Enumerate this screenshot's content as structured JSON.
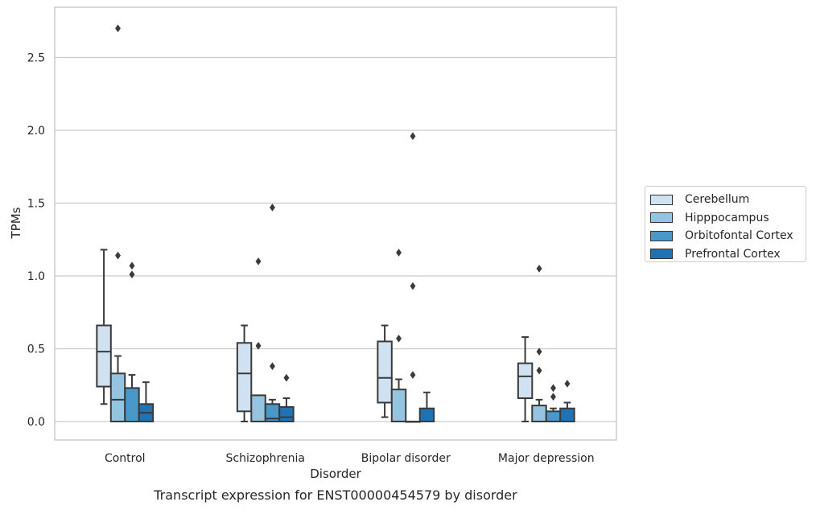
{
  "caption": "Transcript expression for ENST00000454579 by disorder",
  "chart_data": {
    "type": "box",
    "title": "",
    "xlabel": "Disorder",
    "ylabel": "TPMs",
    "ylim": [
      -0.13,
      2.85
    ],
    "yticks": [
      "0.0",
      "0.5",
      "1.0",
      "1.5",
      "2.0",
      "2.5"
    ],
    "grid": "horizontal",
    "legend_position": "right",
    "categories": [
      "Control",
      "Schizophrenia",
      "Bipolar disorder",
      "Major depression"
    ],
    "series": [
      {
        "name": "Cerebellum",
        "color": "#d0e1f2",
        "boxes": [
          {
            "whislo": 0.12,
            "q1": 0.24,
            "med": 0.48,
            "q3": 0.66,
            "whishi": 1.18,
            "fliers": []
          },
          {
            "whislo": 0.0,
            "q1": 0.07,
            "med": 0.33,
            "q3": 0.54,
            "whishi": 0.66,
            "fliers": []
          },
          {
            "whislo": 0.03,
            "q1": 0.13,
            "med": 0.3,
            "q3": 0.55,
            "whishi": 0.66,
            "fliers": []
          },
          {
            "whislo": 0.0,
            "q1": 0.16,
            "med": 0.31,
            "q3": 0.4,
            "whishi": 0.58,
            "fliers": []
          }
        ]
      },
      {
        "name": "Hipppocampus",
        "color": "#94c4df",
        "boxes": [
          {
            "whislo": 0.0,
            "q1": 0.0,
            "med": 0.15,
            "q3": 0.33,
            "whishi": 0.45,
            "fliers": [
              1.14,
              2.7
            ]
          },
          {
            "whislo": 0.0,
            "q1": 0.0,
            "med": 0.0,
            "q3": 0.18,
            "whishi": 0.18,
            "fliers": [
              0.52,
              1.1
            ]
          },
          {
            "whislo": 0.0,
            "q1": 0.0,
            "med": 0.0,
            "q3": 0.22,
            "whishi": 0.29,
            "fliers": [
              0.57,
              1.16
            ]
          },
          {
            "whislo": 0.0,
            "q1": 0.0,
            "med": 0.0,
            "q3": 0.11,
            "whishi": 0.15,
            "fliers": [
              0.35,
              0.48,
              1.05
            ]
          }
        ]
      },
      {
        "name": "Orbitofontal Cortex",
        "color": "#4a98c9",
        "boxes": [
          {
            "whislo": 0.0,
            "q1": 0.0,
            "med": 0.0,
            "q3": 0.23,
            "whishi": 0.32,
            "fliers": [
              1.01,
              1.07
            ]
          },
          {
            "whislo": 0.0,
            "q1": 0.0,
            "med": 0.02,
            "q3": 0.12,
            "whishi": 0.15,
            "fliers": [
              0.38,
              1.47
            ]
          },
          {
            "whislo": 0.0,
            "q1": 0.0,
            "med": 0.0,
            "q3": 0.0,
            "whishi": 0.0,
            "fliers": [
              0.32,
              0.93,
              1.96
            ]
          },
          {
            "whislo": 0.0,
            "q1": 0.0,
            "med": 0.0,
            "q3": 0.07,
            "whishi": 0.09,
            "fliers": [
              0.17,
              0.23
            ]
          }
        ]
      },
      {
        "name": "Prefrontal Cortex",
        "color": "#2171b5",
        "boxes": [
          {
            "whislo": 0.0,
            "q1": 0.0,
            "med": 0.06,
            "q3": 0.12,
            "whishi": 0.27,
            "fliers": []
          },
          {
            "whislo": 0.0,
            "q1": 0.0,
            "med": 0.03,
            "q3": 0.1,
            "whishi": 0.16,
            "fliers": [
              0.3
            ]
          },
          {
            "whislo": 0.0,
            "q1": 0.0,
            "med": 0.0,
            "q3": 0.09,
            "whishi": 0.2,
            "fliers": []
          },
          {
            "whislo": 0.0,
            "q1": 0.0,
            "med": 0.0,
            "q3": 0.09,
            "whishi": 0.13,
            "fliers": [
              0.26
            ]
          }
        ]
      }
    ]
  }
}
